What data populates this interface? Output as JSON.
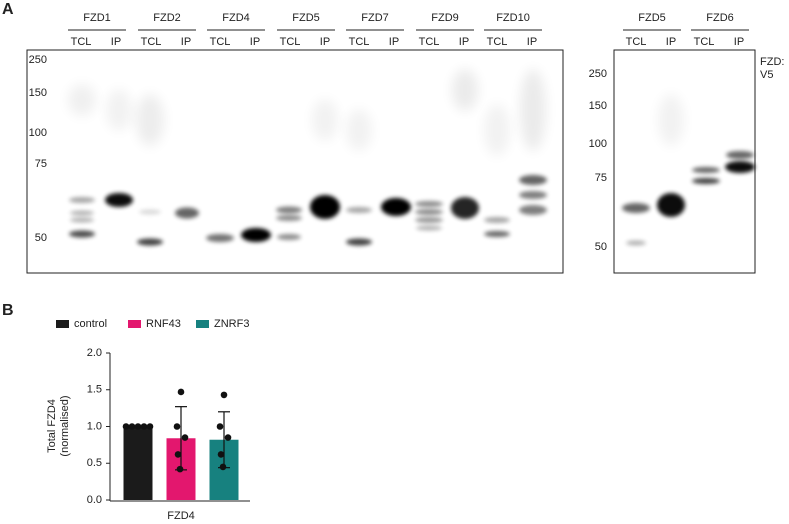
{
  "panel_a": {
    "label": "A",
    "blots": [
      {
        "groups": [
          {
            "name": "FZD1",
            "lanes": [
              "TCL",
              "IP"
            ]
          },
          {
            "name": "FZD2",
            "lanes": [
              "TCL",
              "IP"
            ]
          },
          {
            "name": "FZD4",
            "lanes": [
              "TCL",
              "IP"
            ]
          },
          {
            "name": "FZD5",
            "lanes": [
              "TCL",
              "IP"
            ]
          },
          {
            "name": "FZD7",
            "lanes": [
              "TCL",
              "IP"
            ]
          },
          {
            "name": "FZD9",
            "lanes": [
              "TCL",
              "IP"
            ]
          },
          {
            "name": "FZD10",
            "lanes": [
              "TCL",
              "IP"
            ]
          }
        ],
        "markers": [
          250,
          150,
          100,
          75,
          50
        ]
      },
      {
        "groups": [
          {
            "name": "FZD5",
            "lanes": [
              "TCL",
              "IP"
            ]
          },
          {
            "name": "FZD6",
            "lanes": [
              "TCL",
              "IP"
            ]
          }
        ],
        "markers": [
          250,
          150,
          100,
          75,
          50
        ]
      }
    ],
    "tag": [
      "FZD:",
      "V5"
    ]
  },
  "panel_b": {
    "label": "B"
  },
  "chart_data": {
    "type": "bar",
    "categories": [
      "FZD4"
    ],
    "y_label": [
      "Total FZD4",
      "(normalised)"
    ],
    "ylim": [
      0,
      2
    ],
    "yticks": [
      {
        "value": 0,
        "label": "0.0"
      },
      {
        "value": 0.5,
        "label": "0.5"
      },
      {
        "value": 1,
        "label": "1.0"
      },
      {
        "value": 1.5,
        "label": "1.5"
      },
      {
        "value": 2,
        "label": "2.0"
      }
    ],
    "series": [
      {
        "name": "control",
        "color": "#1b1b1b",
        "values": [
          1.0
        ],
        "errors": [
          0
        ],
        "points": [
          1,
          1,
          1,
          1,
          1
        ]
      },
      {
        "name": "RNF43",
        "color": "#e3176e",
        "values": [
          0.84
        ],
        "errors": [
          0.43
        ],
        "points": [
          1.47,
          1.0,
          0.85,
          0.62,
          0.42
        ]
      },
      {
        "name": "ZNRF3",
        "color": "#17817f",
        "values": [
          0.82
        ],
        "errors": [
          0.38
        ],
        "points": [
          1.43,
          1.0,
          0.85,
          0.62,
          0.45
        ]
      }
    ]
  }
}
